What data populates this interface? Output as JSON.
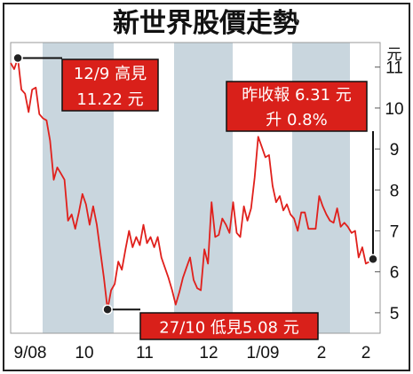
{
  "chart_data": {
    "type": "line",
    "title": "新世界股價走勢",
    "y_unit": "元",
    "ylim": [
      4.5,
      11.6
    ],
    "y_ticks": [
      5,
      6,
      7,
      8,
      9,
      10,
      11
    ],
    "x_tick_labels": [
      "9/08",
      "10",
      "11",
      "12",
      "1/09",
      "2",
      "2"
    ],
    "shaded_bands": true,
    "line_color": "#e0201c",
    "band_color": "#c9d6de",
    "series": [
      {
        "values": [
          11.1,
          10.95,
          11.22,
          10.45,
          10.35,
          9.9,
          10.45,
          10.5,
          9.85,
          9.75,
          9.7,
          9.2,
          8.25,
          8.55,
          8.4,
          8.25,
          7.25,
          7.4,
          7.05,
          7.45,
          7.9,
          7.65,
          7.15,
          7.6,
          7.15,
          6.5,
          5.85,
          5.08,
          5.55,
          5.7,
          6.25,
          6.05,
          6.55,
          7.0,
          6.6,
          6.85,
          6.65,
          7.15,
          6.7,
          6.85,
          6.6,
          6.85,
          6.35,
          6.1,
          5.85,
          5.55,
          5.2,
          5.5,
          5.85,
          6.1,
          6.35,
          5.8,
          5.6,
          5.55,
          6.55,
          6.2,
          7.7,
          6.85,
          6.9,
          7.3,
          7.15,
          6.95,
          7.7,
          6.95,
          6.85,
          7.6,
          7.25,
          7.55,
          8.3,
          9.3,
          9.05,
          8.8,
          8.85,
          8.1,
          7.7,
          7.85,
          7.5,
          7.65,
          7.4,
          7.3,
          7.0,
          7.45,
          7.45,
          7.05,
          7.05,
          7.05,
          7.85,
          7.6,
          7.4,
          7.25,
          7.2,
          7.55,
          7.1,
          7.2,
          7.1,
          6.95,
          7.0,
          6.35,
          6.6,
          6.2,
          6.25,
          6.31
        ]
      }
    ],
    "annotations": [
      {
        "id": "high",
        "lines": [
          "12/9 高見",
          "11.22 元"
        ]
      },
      {
        "id": "low",
        "lines": [
          "27/10 低見5.08 元"
        ]
      },
      {
        "id": "close",
        "lines": [
          "昨收報 6.31 元",
          "升 0.8%"
        ]
      }
    ]
  }
}
